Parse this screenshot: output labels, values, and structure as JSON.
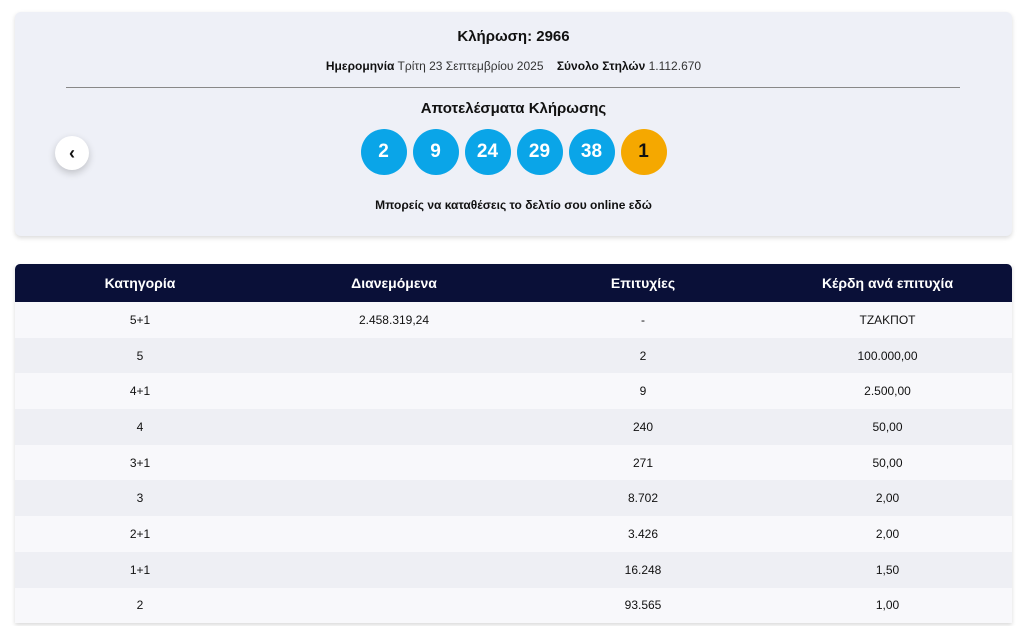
{
  "header": {
    "title": "Κλήρωση: 2966",
    "date_label": "Ημερομηνία",
    "date": "Τρίτη 23 Σεπτεμβρίου 2025",
    "columns_label": "Σύνολο Στηλών",
    "columns": "1.112.670"
  },
  "results": {
    "title": "Αποτελέσματα Κλήρωσης",
    "numbers": [
      "2",
      "9",
      "24",
      "29",
      "38"
    ],
    "bonus": "1",
    "note": "Μπορείς να καταθέσεις το δελτίο σου online εδώ"
  },
  "table": {
    "headers": [
      "Κατηγορία",
      "Διανεμόμενα",
      "Επιτυχίες",
      "Κέρδη ανά επιτυχία"
    ],
    "rows": [
      [
        "5+1",
        "2.458.319,24",
        "-",
        "ΤΖΑΚΠΟΤ"
      ],
      [
        "5",
        null,
        "2",
        "100.000,00"
      ],
      [
        "4+1",
        null,
        "9",
        "2.500,00"
      ],
      [
        "4",
        null,
        "240",
        "50,00"
      ],
      [
        "3+1",
        null,
        "271",
        "50,00"
      ],
      [
        "3",
        null,
        "8.702",
        "2,00"
      ],
      [
        "2+1",
        null,
        "3.426",
        "2,00"
      ],
      [
        "1+1",
        null,
        "16.248",
        "1,50"
      ],
      [
        "2",
        null,
        "93.565",
        "1,00"
      ]
    ]
  }
}
